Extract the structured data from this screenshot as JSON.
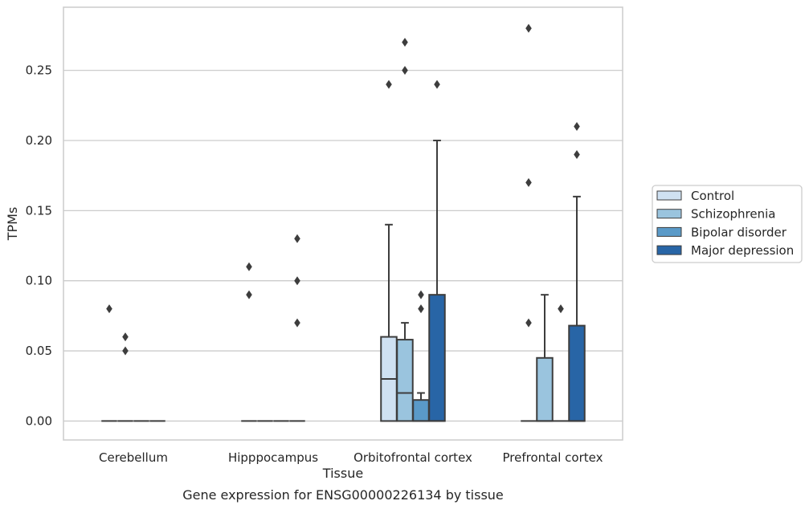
{
  "chart_data": {
    "type": "box",
    "title": "",
    "caption": "Gene expression for ENSG00000226134 by tissue",
    "xlabel": "Tissue",
    "ylabel": "TPMs",
    "ylim": [
      -0.0135,
      0.295
    ],
    "yticks": [
      0.0,
      0.05,
      0.1,
      0.15,
      0.2,
      0.25
    ],
    "ytick_labels": [
      "0.00",
      "0.05",
      "0.10",
      "0.15",
      "0.20",
      "0.25"
    ],
    "grid": "horizontal",
    "legend_position": "right",
    "categories": [
      "Cerebellum",
      "Hipppocampus",
      "Orbitofrontal cortex",
      "Prefrontal cortex"
    ],
    "series": [
      {
        "name": "Control",
        "color": "#cfe1f2",
        "boxes": [
          {
            "q1": 0,
            "median": 0,
            "q3": 0,
            "whisker_low": 0,
            "whisker_high": 0,
            "outliers": [
              0.08
            ]
          },
          {
            "q1": 0,
            "median": 0,
            "q3": 0,
            "whisker_low": 0,
            "whisker_high": 0,
            "outliers": [
              0.09,
              0.11
            ]
          },
          {
            "q1": 0,
            "median": 0.03,
            "q3": 0.06,
            "whisker_low": 0,
            "whisker_high": 0.14,
            "outliers": [
              0.24
            ]
          },
          {
            "q1": 0,
            "median": 0,
            "q3": 0,
            "whisker_low": 0,
            "whisker_high": 0,
            "outliers": [
              0.07,
              0.17,
              0.28
            ]
          }
        ]
      },
      {
        "name": "Schizophrenia",
        "color": "#9ac4de",
        "boxes": [
          {
            "q1": 0,
            "median": 0,
            "q3": 0,
            "whisker_low": 0,
            "whisker_high": 0,
            "outliers": [
              0.05,
              0.06
            ]
          },
          {
            "q1": 0,
            "median": 0,
            "q3": 0,
            "whisker_low": 0,
            "whisker_high": 0,
            "outliers": []
          },
          {
            "q1": 0,
            "median": 0.02,
            "q3": 0.058,
            "whisker_low": 0,
            "whisker_high": 0.07,
            "outliers": [
              0.25,
              0.27
            ]
          },
          {
            "q1": 0,
            "median": 0,
            "q3": 0.045,
            "whisker_low": 0,
            "whisker_high": 0.09,
            "outliers": []
          }
        ]
      },
      {
        "name": "Bipolar disorder",
        "color": "#5a9ac8",
        "boxes": [
          {
            "q1": 0,
            "median": 0,
            "q3": 0,
            "whisker_low": 0,
            "whisker_high": 0,
            "outliers": []
          },
          {
            "q1": 0,
            "median": 0,
            "q3": 0,
            "whisker_low": 0,
            "whisker_high": 0,
            "outliers": []
          },
          {
            "q1": 0,
            "median": 0,
            "q3": 0.015,
            "whisker_low": 0,
            "whisker_high": 0.02,
            "outliers": [
              0.08,
              0.09
            ]
          },
          {
            "q1": 0,
            "median": 0,
            "q3": 0,
            "whisker_low": 0,
            "whisker_high": 0,
            "outliers": [
              0.08
            ]
          }
        ]
      },
      {
        "name": "Major depression",
        "color": "#2865a6",
        "boxes": [
          {
            "q1": 0,
            "median": 0,
            "q3": 0,
            "whisker_low": 0,
            "whisker_high": 0,
            "outliers": []
          },
          {
            "q1": 0,
            "median": 0,
            "q3": 0,
            "whisker_low": 0,
            "whisker_high": 0,
            "outliers": [
              0.07,
              0.1,
              0.13
            ]
          },
          {
            "q1": 0,
            "median": 0,
            "q3": 0.09,
            "whisker_low": 0,
            "whisker_high": 0.2,
            "outliers": [
              0.24
            ]
          },
          {
            "q1": 0,
            "median": 0,
            "q3": 0.068,
            "whisker_low": 0,
            "whisker_high": 0.16,
            "outliers": [
              0.19,
              0.21
            ]
          }
        ]
      }
    ]
  }
}
